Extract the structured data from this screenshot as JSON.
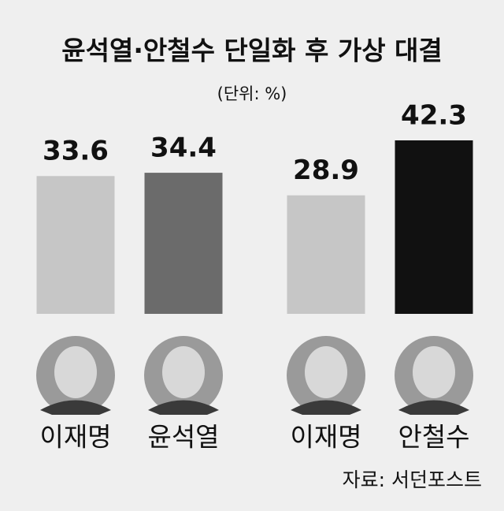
{
  "chart_data": {
    "type": "bar",
    "title": "윤석열·안철수 단일화 후 가상 대결",
    "subtitle": "(단위: %)",
    "categories": [
      "이재명",
      "윤석열",
      "이재명",
      "안철수"
    ],
    "values": [
      33.6,
      34.4,
      28.9,
      42.3
    ],
    "colors": [
      "#c6c6c6",
      "#6b6b6b",
      "#c6c6c6",
      "#111111"
    ],
    "source": "자료: 서던포스트"
  }
}
